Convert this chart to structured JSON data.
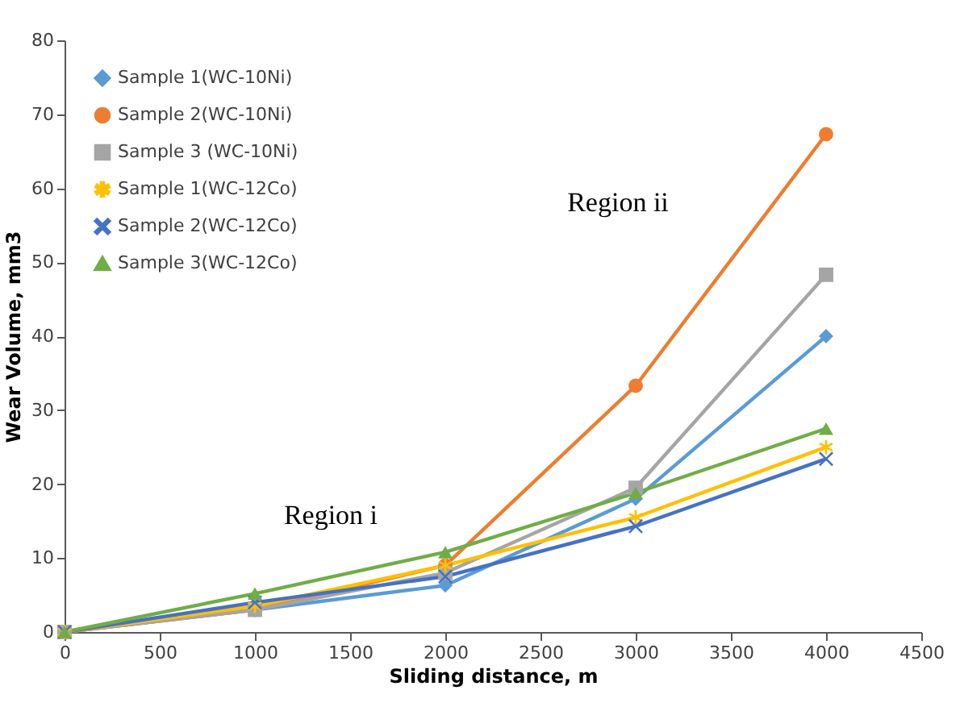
{
  "chart_data": {
    "type": "line",
    "xlabel": "Sliding distance, m",
    "ylabel": "Wear Volume, mm3",
    "x": [
      0,
      1000,
      2000,
      3000,
      4000
    ],
    "series": [
      {
        "name": "Sample 1(WC-10Ni)",
        "color": "#5b9bd5",
        "marker": "diamond",
        "values": [
          0,
          3,
          6.3,
          18,
          40
        ]
      },
      {
        "name": "Sample 2(WC-10Ni)",
        "color": "#ed7d31",
        "marker": "circle",
        "values": [
          0,
          3,
          9,
          33.3,
          67.3
        ]
      },
      {
        "name": "Sample 3 (WC-10Ni)",
        "color": "#a5a5a5",
        "marker": "square",
        "values": [
          0,
          3,
          8,
          19.5,
          48.3
        ]
      },
      {
        "name": "Sample 1(WC-12Co)",
        "color": "#ffc000",
        "marker": "star",
        "values": [
          0,
          3.5,
          9,
          15.5,
          25
        ]
      },
      {
        "name": "Sample 2(WC-12Co)",
        "color": "#4472c4",
        "marker": "cross",
        "values": [
          0,
          4,
          7.5,
          14.3,
          23.4
        ]
      },
      {
        "name": "Sample 3(WC-12Co)",
        "color": "#70ad47",
        "marker": "triangle",
        "values": [
          0,
          5.2,
          10.8,
          18.8,
          27.5
        ]
      }
    ],
    "xlim": [
      0,
      4500
    ],
    "xticks": [
      0,
      500,
      1000,
      1500,
      2000,
      2500,
      3000,
      3500,
      4000,
      4500
    ],
    "ylim": [
      0,
      80
    ],
    "yticks": [
      0,
      10,
      20,
      30,
      40,
      50,
      60,
      70,
      80
    ],
    "annotations": [
      "Region i",
      "Region ii"
    ],
    "legend": "top left",
    "line_style": "solid"
  }
}
